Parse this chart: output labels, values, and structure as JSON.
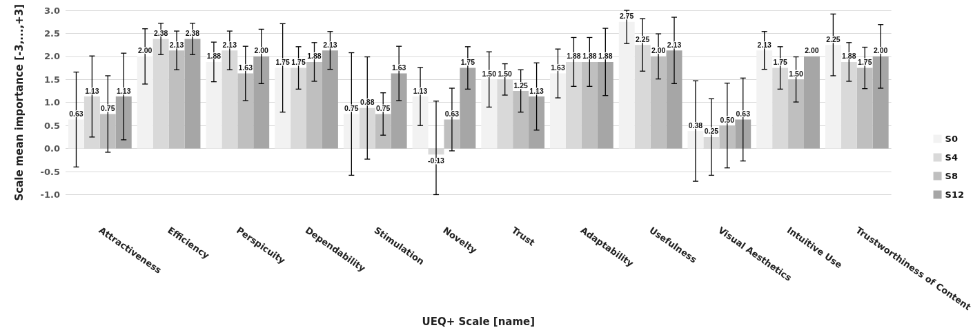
{
  "chart_data": {
    "type": "bar",
    "xlabel": "UEQ+ Scale [name]",
    "ylabel": "Scale mean importance [-3,...,+3]",
    "categories": [
      "Attractiveness",
      "Efficiency",
      "Perspicuity",
      "Dependability",
      "Stimulation",
      "Novelty",
      "Trust",
      "Adaptability",
      "Usefulness",
      "Visual Aesthetics",
      "Intuitive Use",
      "Trustworthiness of Content"
    ],
    "series": [
      {
        "name": "S0",
        "color": "#f2f2f2",
        "values": [
          0.63,
          2.0,
          1.88,
          1.75,
          0.75,
          1.13,
          1.5,
          1.63,
          2.75,
          0.38,
          2.13,
          2.25
        ],
        "errors": [
          1.03,
          0.6,
          0.43,
          0.96,
          1.33,
          0.63,
          0.6,
          0.53,
          [
            2.28,
            3.0
          ],
          1.09,
          0.41,
          0.67
        ],
        "value_labels": [
          "0.63",
          "2.00",
          "1.88",
          "1.75",
          "0.75",
          "1.13",
          "1.50",
          "1.63",
          "2.75",
          "0.38",
          "2.13",
          "2.25"
        ]
      },
      {
        "name": "S4",
        "color": "#d9d9d9",
        "values": [
          1.13,
          2.38,
          2.13,
          1.75,
          0.88,
          -0.13,
          1.5,
          1.88,
          2.25,
          0.25,
          1.75,
          1.88
        ],
        "errors": [
          0.88,
          0.34,
          0.42,
          0.46,
          1.11,
          [
            -1.0,
            1.03
          ],
          0.34,
          0.53,
          0.57,
          0.83,
          0.46,
          0.42
        ],
        "value_labels": [
          "1.13",
          "2.38",
          "2.13",
          "1.75",
          "0.88",
          "-0.13",
          "1.50",
          "1.88",
          "2.25",
          "0.25",
          "1.75",
          "1.88"
        ]
      },
      {
        "name": "S8",
        "color": "#bfbfbf",
        "values": [
          0.75,
          2.13,
          1.63,
          1.88,
          0.75,
          0.63,
          1.25,
          1.88,
          2.0,
          0.5,
          1.5,
          1.75
        ],
        "errors": [
          0.83,
          0.42,
          0.59,
          0.42,
          0.46,
          0.68,
          0.46,
          0.53,
          0.49,
          0.92,
          0.49,
          0.45
        ],
        "value_labels": [
          "0.75",
          "2.13",
          "1.63",
          "1.88",
          "0.75",
          "0.63",
          "1.25",
          "1.88",
          "2.00",
          "0.50",
          "1.50",
          "1.75"
        ]
      },
      {
        "name": "S12",
        "color": "#a6a6a6",
        "values": [
          1.13,
          2.38,
          2.0,
          2.13,
          1.63,
          1.75,
          1.13,
          1.88,
          2.13,
          0.63,
          2.0,
          2.0
        ],
        "errors": [
          0.94,
          0.34,
          0.59,
          0.41,
          0.59,
          0.46,
          0.73,
          0.73,
          0.72,
          0.9,
          null,
          0.69
        ],
        "value_labels": [
          "1.13",
          "2.38",
          "2.00",
          "2.13",
          "1.63",
          "1.75",
          "1.13",
          "1.88",
          "2.13",
          "0.63",
          "2.00",
          "2.00"
        ]
      }
    ],
    "ylim": [
      -1.0,
      3.0
    ],
    "yticks": [
      {
        "value": -1,
        "label": "-1.0"
      },
      {
        "value": -0.5,
        "label": "-0.5"
      },
      {
        "value": 0,
        "label": "0.0"
      },
      {
        "value": 0.5,
        "label": "0.5"
      },
      {
        "value": 1,
        "label": "1.0"
      },
      {
        "value": 1.5,
        "label": "1.5"
      },
      {
        "value": 2,
        "label": "2.0"
      },
      {
        "value": 2.5,
        "label": "2.5"
      },
      {
        "value": 3,
        "label": "3.0"
      }
    ],
    "grid": "y",
    "legend": "right"
  }
}
